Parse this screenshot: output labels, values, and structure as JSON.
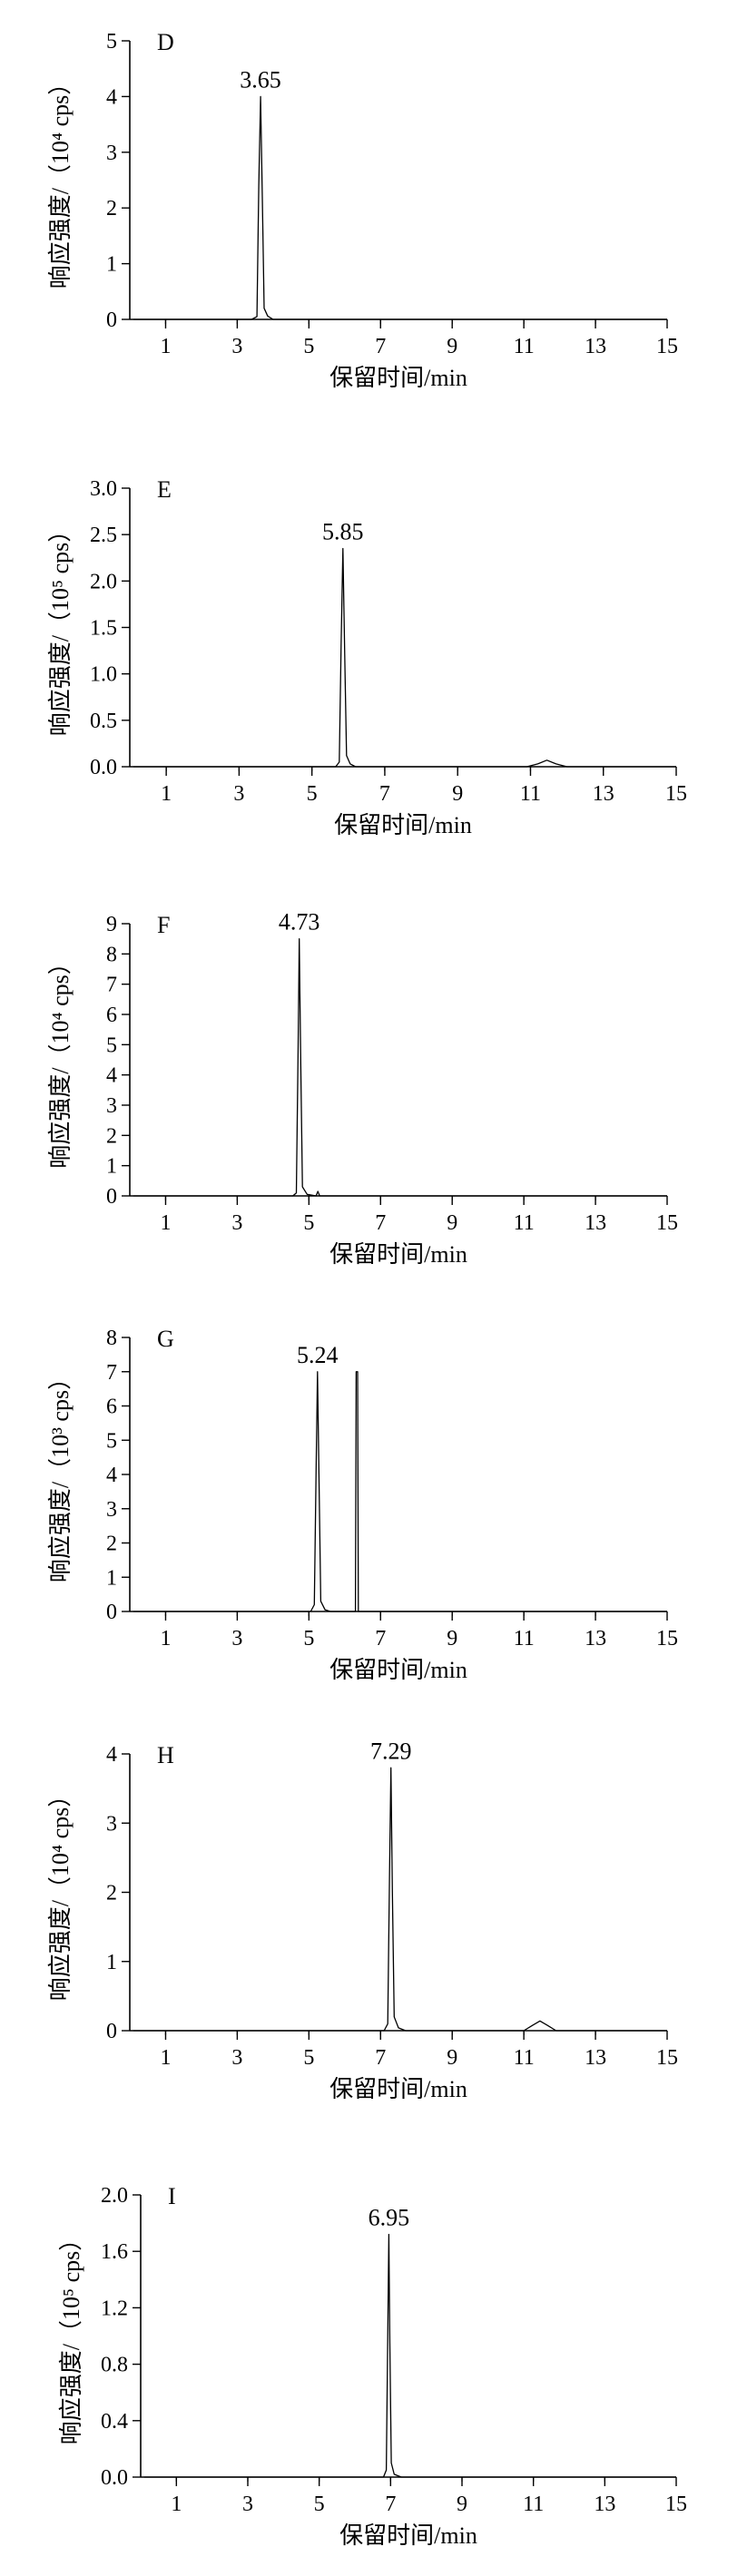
{
  "chart_data": [
    {
      "type": "line",
      "panel_label": "D",
      "xlabel": "保留时间/min",
      "ylabel": "响应强度/（10⁴ cps）",
      "x_ticks": [
        "1",
        "3",
        "5",
        "7",
        "9",
        "11",
        "13",
        "15"
      ],
      "y_ticks": [
        "0",
        "1",
        "2",
        "3",
        "4",
        "5"
      ],
      "xlim": [
        0,
        15
      ],
      "ylim": [
        0,
        5
      ],
      "peak_label": "3.65",
      "series": [
        {
          "x": [
            0.1,
            3.4,
            3.55,
            3.6,
            3.65,
            3.7,
            3.75,
            3.85,
            4.0,
            15
          ],
          "y": [
            0,
            0,
            0.05,
            2.4,
            4.0,
            2.2,
            0.2,
            0.06,
            0,
            0
          ]
        }
      ]
    },
    {
      "type": "line",
      "panel_label": "E",
      "xlabel": "保留时间/min",
      "ylabel": "响应强度/（10⁵ cps）",
      "x_ticks": [
        "1",
        "3",
        "5",
        "7",
        "9",
        "11",
        "13",
        "15"
      ],
      "y_ticks": [
        "0.0",
        "0.5",
        "1.0",
        "1.5",
        "2.0",
        "2.5",
        "3.0"
      ],
      "xlim": [
        0,
        15
      ],
      "ylim": [
        0,
        3.0
      ],
      "peak_label": "5.85",
      "series": [
        {
          "x": [
            0.1,
            5.65,
            5.75,
            5.8,
            5.85,
            5.9,
            5.95,
            6.05,
            6.2,
            10.9,
            11.2,
            11.45,
            11.7,
            12.0,
            15
          ],
          "y": [
            0,
            0,
            0.05,
            1.3,
            2.35,
            1.2,
            0.12,
            0.03,
            0,
            0,
            0.03,
            0.07,
            0.03,
            0,
            0
          ]
        }
      ]
    },
    {
      "type": "line",
      "panel_label": "F",
      "xlabel": "保留时间/min",
      "ylabel": "响应强度/（10⁴ cps）",
      "x_ticks": [
        "1",
        "3",
        "5",
        "7",
        "9",
        "11",
        "13",
        "15"
      ],
      "y_ticks": [
        "0",
        "1",
        "2",
        "3",
        "4",
        "5",
        "6",
        "7",
        "8",
        "9"
      ],
      "xlim": [
        0,
        15
      ],
      "ylim": [
        0,
        9
      ],
      "peak_label": "4.73",
      "series": [
        {
          "x": [
            0.1,
            4.55,
            4.65,
            4.7,
            4.73,
            4.77,
            4.82,
            4.95,
            5.2,
            5.25,
            5.3,
            15
          ],
          "y": [
            0,
            0,
            0.1,
            5.0,
            8.5,
            4.5,
            0.3,
            0.05,
            0,
            0.15,
            0,
            0
          ]
        }
      ]
    },
    {
      "type": "line",
      "panel_label": "G",
      "xlabel": "保留时间/min",
      "ylabel": "响应强度/（10³ cps）",
      "x_ticks": [
        "1",
        "3",
        "5",
        "7",
        "9",
        "11",
        "13",
        "15"
      ],
      "y_ticks": [
        "0",
        "1",
        "2",
        "3",
        "4",
        "5",
        "6",
        "7",
        "8"
      ],
      "xlim": [
        0,
        15
      ],
      "ylim": [
        0,
        8
      ],
      "peak_label": "5.24",
      "series": [
        {
          "x": [
            0.1,
            5.05,
            5.15,
            5.2,
            5.24,
            5.28,
            5.33,
            5.45,
            5.6,
            6.3,
            6.32,
            6.36,
            6.38,
            15
          ],
          "y": [
            0,
            0,
            0.2,
            4.0,
            7.0,
            4.0,
            0.3,
            0.05,
            0,
            0,
            7.0,
            7.0,
            0,
            0
          ]
        }
      ]
    },
    {
      "type": "line",
      "panel_label": "H",
      "xlabel": "保留时间/min",
      "ylabel": "响应强度/（10⁴ cps）",
      "x_ticks": [
        "1",
        "3",
        "5",
        "7",
        "9",
        "11",
        "13",
        "15"
      ],
      "y_ticks": [
        "0",
        "1",
        "2",
        "3",
        "4"
      ],
      "xlim": [
        0,
        15
      ],
      "ylim": [
        0,
        4
      ],
      "peak_label": "7.29",
      "series": [
        {
          "x": [
            0.1,
            7.1,
            7.2,
            7.25,
            7.29,
            7.33,
            7.38,
            7.5,
            7.7,
            11.0,
            11.25,
            11.45,
            11.65,
            11.9,
            15
          ],
          "y": [
            0,
            0,
            0.1,
            2.2,
            3.8,
            2.0,
            0.2,
            0.04,
            0,
            0,
            0.08,
            0.14,
            0.08,
            0,
            0
          ]
        }
      ]
    },
    {
      "type": "line",
      "panel_label": "I",
      "xlabel": "保留时间/min",
      "ylabel": "响应强度/（10⁵ cps）",
      "x_ticks": [
        "1",
        "3",
        "5",
        "7",
        "9",
        "11",
        "13",
        "15"
      ],
      "y_ticks": [
        "0.0",
        "0.4",
        "0.8",
        "1.2",
        "1.6",
        "2.0"
      ],
      "xlim": [
        0,
        15
      ],
      "ylim": [
        0,
        2.0
      ],
      "peak_label": "6.95",
      "series": [
        {
          "x": [
            0.1,
            6.8,
            6.88,
            6.92,
            6.95,
            6.98,
            7.02,
            7.1,
            7.3,
            15
          ],
          "y": [
            0,
            0,
            0.05,
            1.0,
            1.72,
            0.95,
            0.1,
            0.02,
            0,
            0
          ]
        }
      ]
    }
  ]
}
